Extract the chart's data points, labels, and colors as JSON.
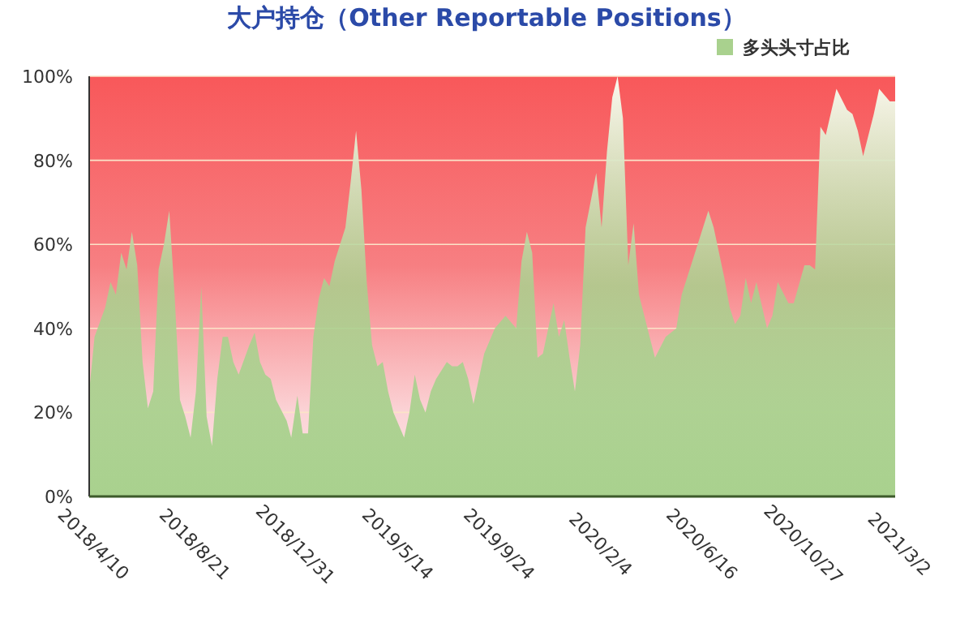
{
  "chart_data": {
    "type": "area",
    "title": "大户持仓（Other Reportable Positions）",
    "series": [
      {
        "name": "多头头寸占比",
        "color": "#a9d18e",
        "x": [
          "2018-04-10",
          "2018-04-17",
          "2018-05-01",
          "2018-05-08",
          "2018-05-15",
          "2018-05-22",
          "2018-05-29",
          "2018-06-05",
          "2018-06-12",
          "2018-06-19",
          "2018-06-26",
          "2018-07-03",
          "2018-07-10",
          "2018-07-17",
          "2018-07-24",
          "2018-07-31",
          "2018-08-07",
          "2018-08-14",
          "2018-08-21",
          "2018-08-28",
          "2018-09-04",
          "2018-09-11",
          "2018-09-18",
          "2018-09-25",
          "2018-10-02",
          "2018-10-09",
          "2018-10-16",
          "2018-10-23",
          "2018-11-06",
          "2018-11-13",
          "2018-11-20",
          "2018-11-27",
          "2018-12-04",
          "2018-12-11",
          "2018-12-25",
          "2018-12-31",
          "2019-01-08",
          "2019-01-15",
          "2019-01-22",
          "2019-01-29",
          "2019-02-05",
          "2019-02-12",
          "2019-02-19",
          "2019-02-26",
          "2019-03-12",
          "2019-03-19",
          "2019-03-26",
          "2019-04-02",
          "2019-04-09",
          "2019-04-16",
          "2019-04-23",
          "2019-04-30",
          "2019-05-07",
          "2019-05-14",
          "2019-05-28",
          "2019-06-04",
          "2019-06-11",
          "2019-06-18",
          "2019-06-25",
          "2019-07-02",
          "2019-07-09",
          "2019-07-23",
          "2019-07-30",
          "2019-08-06",
          "2019-08-13",
          "2019-08-20",
          "2019-08-27",
          "2019-09-10",
          "2019-09-24",
          "2019-10-08",
          "2019-10-22",
          "2019-10-29",
          "2019-11-05",
          "2019-11-12",
          "2019-11-19",
          "2019-11-26",
          "2019-12-10",
          "2019-12-17",
          "2019-12-24",
          "2019-12-31",
          "2020-01-07",
          "2020-01-14",
          "2020-01-21",
          "2020-02-04",
          "2020-02-11",
          "2020-02-18",
          "2020-02-25",
          "2020-03-03",
          "2020-03-10",
          "2020-03-17",
          "2020-03-24",
          "2020-03-31",
          "2020-04-14",
          "2020-04-21",
          "2020-05-05",
          "2020-05-19",
          "2020-05-26",
          "2020-06-09",
          "2020-06-16",
          "2020-06-30",
          "2020-07-07",
          "2020-07-21",
          "2020-07-28",
          "2020-08-04",
          "2020-08-11",
          "2020-08-18",
          "2020-08-25",
          "2020-09-01",
          "2020-09-15",
          "2020-09-22",
          "2020-09-29",
          "2020-10-13",
          "2020-10-20",
          "2020-11-03",
          "2020-11-10",
          "2020-11-17",
          "2020-11-24",
          "2020-12-01",
          "2020-12-15",
          "2020-12-29",
          "2021-01-05",
          "2021-01-12",
          "2021-01-19",
          "2021-02-02",
          "2021-02-09",
          "2021-02-23",
          "2021-03-02"
        ],
        "values": [
          25,
          38,
          45,
          51,
          48,
          58,
          54,
          63,
          55,
          32,
          21,
          25,
          54,
          60,
          68,
          48,
          23,
          19,
          14,
          25,
          50,
          19,
          12,
          28,
          38,
          38,
          32,
          29,
          36,
          39,
          32,
          29,
          28,
          23,
          18,
          14,
          24,
          15,
          15,
          38,
          47,
          52,
          50,
          56,
          64,
          75,
          87,
          73,
          51,
          36,
          31,
          32,
          25,
          20,
          14,
          20,
          29,
          23,
          20,
          25,
          28,
          32,
          31,
          31,
          32,
          28,
          22,
          34,
          40,
          43,
          40,
          56,
          63,
          58,
          33,
          34,
          46,
          38,
          42,
          33,
          25,
          36,
          64,
          77,
          64,
          82,
          95,
          100,
          90,
          55,
          65,
          48,
          38,
          33,
          38,
          40,
          48,
          56,
          60,
          68,
          64,
          52,
          45,
          41,
          43,
          52,
          46,
          51,
          40,
          43,
          51,
          46,
          46,
          55,
          55,
          54,
          88,
          86,
          97,
          92,
          91,
          87,
          81,
          91,
          97,
          94,
          94
        ]
      }
    ],
    "xlim": [
      "2018-04-10",
      "2021-03-02"
    ],
    "xticks": [
      {
        "value": "2018-04-10",
        "label": "2018/4/10"
      },
      {
        "value": "2018-08-21",
        "label": "2018/8/21"
      },
      {
        "value": "2018-12-31",
        "label": "2018/12/31"
      },
      {
        "value": "2019-05-14",
        "label": "2019/5/14"
      },
      {
        "value": "2019-09-24",
        "label": "2019/9/24"
      },
      {
        "value": "2020-02-04",
        "label": "2020/2/4"
      },
      {
        "value": "2020-06-16",
        "label": "2020/6/16"
      },
      {
        "value": "2020-10-27",
        "label": "2020/10/27"
      },
      {
        "value": "2021-03-02",
        "label": "2021/3/2"
      }
    ],
    "ylim": [
      0,
      100
    ],
    "yticks": [
      {
        "value": 0,
        "label": "0%"
      },
      {
        "value": 20,
        "label": "20%"
      },
      {
        "value": 40,
        "label": "40%"
      },
      {
        "value": 60,
        "label": "60%"
      },
      {
        "value": 80,
        "label": "80%"
      },
      {
        "value": 100,
        "label": "100%"
      }
    ],
    "grid": "y",
    "legend": "top right"
  }
}
